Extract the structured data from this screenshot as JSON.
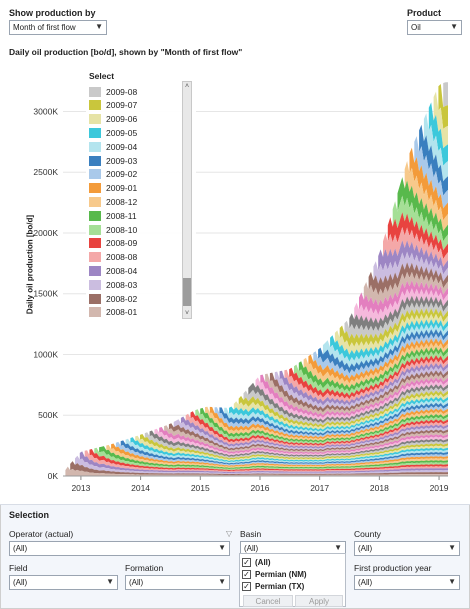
{
  "controls": {
    "show_production_label": "Show production by",
    "show_production_value": "Month of first flow",
    "product_label": "Product",
    "product_value": "Oil"
  },
  "legend": {
    "title": "Select",
    "items": [
      {
        "label": "2009-08",
        "color": "#c9c9c9"
      },
      {
        "label": "2009-07",
        "color": "#c9c63c"
      },
      {
        "label": "2009-06",
        "color": "#e6e3a6"
      },
      {
        "label": "2009-05",
        "color": "#3cc8db"
      },
      {
        "label": "2009-04",
        "color": "#b3e4ee"
      },
      {
        "label": "2009-03",
        "color": "#3a7fbf"
      },
      {
        "label": "2009-02",
        "color": "#a9c9ea"
      },
      {
        "label": "2009-01",
        "color": "#f39b3a"
      },
      {
        "label": "2008-12",
        "color": "#f7c98b"
      },
      {
        "label": "2008-11",
        "color": "#58b94c"
      },
      {
        "label": "2008-10",
        "color": "#a5df96"
      },
      {
        "label": "2008-09",
        "color": "#e8433f"
      },
      {
        "label": "2008-08",
        "color": "#f4a8a8"
      },
      {
        "label": "2008-04",
        "color": "#9d86c4"
      },
      {
        "label": "2008-03",
        "color": "#cbbde0"
      },
      {
        "label": "2008-02",
        "color": "#9b6f66"
      },
      {
        "label": "2008-01",
        "color": "#d2b7ae"
      }
    ]
  },
  "chart_data": {
    "type": "area",
    "title": "Daily oil production [bo/d], shown by \"Month of first flow\"",
    "ylabel": "Daily oil production [bo/d]",
    "xlabel": "",
    "x_ticks": [
      "2013",
      "2014",
      "2015",
      "2016",
      "2017",
      "2018",
      "2019"
    ],
    "y_ticks": [
      "0K",
      "500K",
      "1000K",
      "1500K",
      "2000K",
      "2500K",
      "3000K"
    ],
    "ylim": [
      0,
      3300
    ],
    "y_unit": "K bo/d",
    "stacked": true,
    "x_start": 2012.7,
    "x_end": 2019.15,
    "total_series": [
      {
        "x": 2012.75,
        "y": 60
      },
      {
        "x": 2013.0,
        "y": 200
      },
      {
        "x": 2013.5,
        "y": 260
      },
      {
        "x": 2014.0,
        "y": 340
      },
      {
        "x": 2014.5,
        "y": 430
      },
      {
        "x": 2014.9,
        "y": 540
      },
      {
        "x": 2015.1,
        "y": 570
      },
      {
        "x": 2015.5,
        "y": 560
      },
      {
        "x": 2016.0,
        "y": 830
      },
      {
        "x": 2016.5,
        "y": 880
      },
      {
        "x": 2017.0,
        "y": 1050
      },
      {
        "x": 2017.5,
        "y": 1300
      },
      {
        "x": 2018.0,
        "y": 1830
      },
      {
        "x": 2018.5,
        "y": 2650
      },
      {
        "x": 2018.8,
        "y": 3000
      },
      {
        "x": 2019.0,
        "y": 3220
      },
      {
        "x": 2019.1,
        "y": 3240
      }
    ],
    "vintage_colors": [
      "#c9c9c9",
      "#c9c63c",
      "#e6e3a6",
      "#3cc8db",
      "#b3e4ee",
      "#3a7fbf",
      "#a9c9ea",
      "#f39b3a",
      "#f7c98b",
      "#58b94c",
      "#a5df96",
      "#e8433f",
      "#f4a8a8",
      "#9d86c4",
      "#cbbde0",
      "#9b6f66",
      "#d2b7ae",
      "#e37fbf",
      "#f5b9dc",
      "#7f7f7f"
    ]
  },
  "selection": {
    "title": "Selection",
    "operator_label": "Operator (actual)",
    "operator_value": "(All)",
    "basin_label": "Basin",
    "basin_value": "(All)",
    "county_label": "County",
    "county_value": "(All)",
    "field_label": "Field",
    "field_value": "(All)",
    "formation_label": "Formation",
    "formation_value": "(All)",
    "first_year_label": "First production year",
    "first_year_value": "(All)",
    "basin_options": [
      {
        "label": "(All)",
        "checked": true
      },
      {
        "label": "Permian (NM)",
        "checked": true
      },
      {
        "label": "Permian (TX)",
        "checked": true
      }
    ],
    "cancel_label": "Cancel",
    "apply_label": "Apply"
  }
}
